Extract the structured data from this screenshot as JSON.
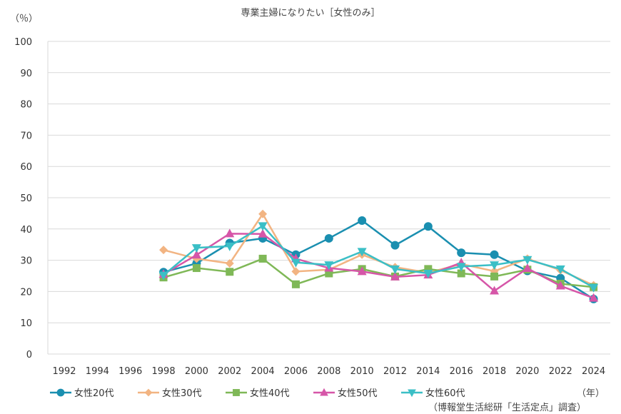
{
  "chart_data": {
    "type": "line",
    "title": "専業主婦になりたい［女性のみ］",
    "ylabel": "（％）",
    "xlabel": "（年）",
    "source": "（博報堂生活総研「生活定点」調査）",
    "ylim": [
      0,
      100
    ],
    "yticks": [
      0,
      10,
      20,
      30,
      40,
      50,
      60,
      70,
      80,
      90,
      100
    ],
    "grid": true,
    "legend": "bottom",
    "categories": [
      "1992",
      "1994",
      "1996",
      "1998",
      "2000",
      "2002",
      "2004",
      "2006",
      "2008",
      "2010",
      "2012",
      "2014",
      "2016",
      "2018",
      "2020",
      "2022",
      "2024"
    ],
    "series": [
      {
        "name": "女性20代",
        "color": "#1a8fb0",
        "marker": "circle",
        "values": [
          null,
          null,
          null,
          26.2,
          29.0,
          35.5,
          37.0,
          31.8,
          37.0,
          42.7,
          34.8,
          40.8,
          32.4,
          31.8,
          26.6,
          24.3,
          17.6
        ]
      },
      {
        "name": "女性30代",
        "color": "#f2b482",
        "marker": "diamond",
        "values": [
          null,
          null,
          null,
          33.3,
          30.5,
          29.0,
          44.8,
          26.4,
          27.0,
          31.8,
          27.8,
          26.0,
          28.8,
          26.5,
          30.5,
          26.8,
          22.0
        ]
      },
      {
        "name": "女性40代",
        "color": "#7fb857",
        "marker": "square",
        "values": [
          null,
          null,
          null,
          24.5,
          27.5,
          26.3,
          30.5,
          22.3,
          25.8,
          27.2,
          24.8,
          27.2,
          25.8,
          24.8,
          27.0,
          22.5,
          21.4
        ]
      },
      {
        "name": "女性50代",
        "color": "#d656a8",
        "marker": "triangle-up",
        "values": [
          null,
          null,
          null,
          25.5,
          31.7,
          38.5,
          38.4,
          30.5,
          27.5,
          26.4,
          24.7,
          25.3,
          29.2,
          20.2,
          27.4,
          21.8,
          17.9
        ]
      },
      {
        "name": "女性60代",
        "color": "#3bbfc6",
        "marker": "triangle-down",
        "values": [
          null,
          null,
          null,
          25.2,
          34.0,
          34.5,
          41.0,
          29.3,
          28.5,
          32.8,
          27.2,
          25.8,
          28.0,
          28.5,
          30.2,
          27.2,
          21.3
        ]
      }
    ]
  }
}
